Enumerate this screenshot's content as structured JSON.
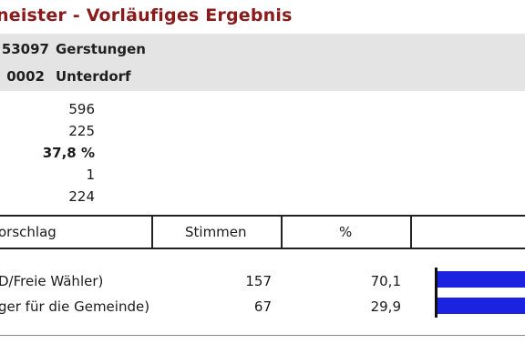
{
  "title": "neister - Vorläufiges Ergebnis",
  "area": {
    "row1": {
      "code": "53097",
      "name": "Gerstungen"
    },
    "row2": {
      "code": "0002",
      "name": "Unterdorf"
    }
  },
  "stats": [
    "596",
    "225",
    "37,8 %",
    "1",
    "224"
  ],
  "table": {
    "headers": {
      "vorschlag": "orschlag",
      "stimmen": "Stimmen",
      "percent": "%"
    },
    "rows": [
      {
        "name": "D/Freie Wähler)",
        "votes": "157",
        "percent": "70,1",
        "share": 70.1
      },
      {
        "name": "ger für die Gemeinde)",
        "votes": "67",
        "percent": "29,9",
        "share": 29.9
      }
    ]
  },
  "colors": {
    "title": "#8b1a1a",
    "bar": "#1b22e0",
    "area_bg": "#e4e4e4"
  }
}
